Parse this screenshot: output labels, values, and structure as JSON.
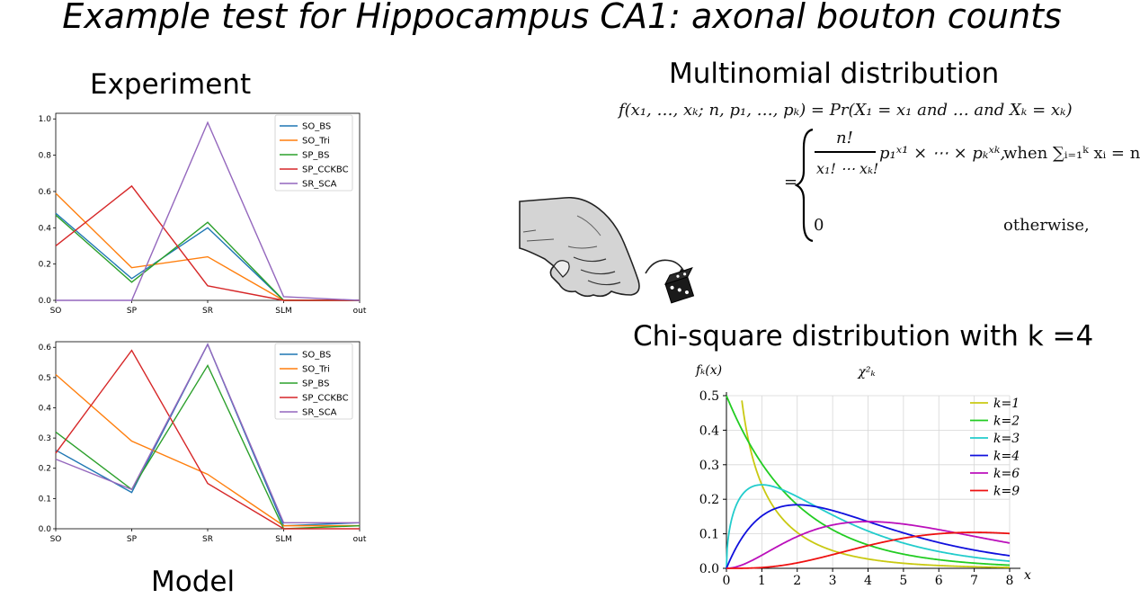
{
  "page": {
    "title": "Example test for Hippocampus CA1: axonal bouton counts",
    "experiment_label": "Experiment",
    "model_label": "Model",
    "multinomial_label": "Multinomial distribution",
    "chisq_label": "Chi-square distribution with k =4"
  },
  "formula": {
    "line1": "f(x₁, …, xₖ; n, p₁, …, pₖ) = Pr(X₁ = x₁ and … and Xₖ = xₖ)",
    "case1_frac_num": "n!",
    "case1_frac_den": "x₁! ⋯ xₖ!",
    "case1_rest": "p₁ˣ¹ × ⋯ × pₖˣᵏ,",
    "case1_cond": "when ∑ᵢ₌₁ᵏ xᵢ = n",
    "case2_value": "0",
    "case2_cond": "otherwise,"
  },
  "chart_data": [
    {
      "type": "line",
      "name": "experiment",
      "categories": [
        "SO",
        "SP",
        "SR",
        "SLM",
        "out"
      ],
      "ylim": [
        0,
        1.0
      ],
      "yticks": [
        "0.0",
        "0.2",
        "0.4",
        "0.6",
        "0.8",
        "1.0"
      ],
      "series": [
        {
          "name": "SO_BS",
          "color": "#1f77b4",
          "values": [
            0.48,
            0.12,
            0.4,
            0.0,
            0.0
          ]
        },
        {
          "name": "SO_Tri",
          "color": "#ff7f0e",
          "values": [
            0.59,
            0.18,
            0.24,
            0.0,
            0.0
          ]
        },
        {
          "name": "SP_BS",
          "color": "#2ca02c",
          "values": [
            0.47,
            0.1,
            0.43,
            0.0,
            0.0
          ]
        },
        {
          "name": "SP_CCKBC",
          "color": "#d62728",
          "values": [
            0.3,
            0.63,
            0.08,
            0.0,
            0.0
          ]
        },
        {
          "name": "SR_SCA",
          "color": "#9467bd",
          "values": [
            0.0,
            0.0,
            0.98,
            0.02,
            0.0
          ]
        }
      ]
    },
    {
      "type": "line",
      "name": "model",
      "categories": [
        "SO",
        "SP",
        "SR",
        "SLM",
        "out"
      ],
      "ylim": [
        0,
        0.6
      ],
      "yticks": [
        "0.0",
        "0.1",
        "0.2",
        "0.3",
        "0.4",
        "0.5",
        "0.6"
      ],
      "series": [
        {
          "name": "SO_BS",
          "color": "#1f77b4",
          "values": [
            0.26,
            0.12,
            0.61,
            0.01,
            0.02
          ]
        },
        {
          "name": "SO_Tri",
          "color": "#ff7f0e",
          "values": [
            0.51,
            0.29,
            0.18,
            0.01,
            0.01
          ]
        },
        {
          "name": "SP_BS",
          "color": "#2ca02c",
          "values": [
            0.32,
            0.13,
            0.54,
            0.0,
            0.01
          ]
        },
        {
          "name": "SP_CCKBC",
          "color": "#d62728",
          "values": [
            0.25,
            0.59,
            0.15,
            0.0,
            0.0
          ]
        },
        {
          "name": "SR_SCA",
          "color": "#9467bd",
          "values": [
            0.23,
            0.13,
            0.61,
            0.02,
            0.02
          ]
        }
      ]
    },
    {
      "type": "line",
      "name": "chi-square",
      "title": "χ²ₖ",
      "ylabel": "fₖ(x)",
      "xlabel": "x",
      "xlim": [
        0,
        8
      ],
      "ylim": [
        0,
        0.5
      ],
      "xticks": [
        "0",
        "1",
        "2",
        "3",
        "4",
        "5",
        "6",
        "7",
        "8"
      ],
      "yticks": [
        "0.0",
        "0.1",
        "0.2",
        "0.3",
        "0.4",
        "0.5"
      ],
      "grid": true,
      "legend": "top-right",
      "series": [
        {
          "name": "k=1",
          "k": 1,
          "color": "#c9c912"
        },
        {
          "name": "k=2",
          "k": 2,
          "color": "#22cc22"
        },
        {
          "name": "k=3",
          "k": 3,
          "color": "#22cccc"
        },
        {
          "name": "k=4",
          "k": 4,
          "color": "#1010dd"
        },
        {
          "name": "k=6",
          "k": 6,
          "color": "#bb10bb"
        },
        {
          "name": "k=9",
          "k": 9,
          "color": "#ee1111"
        }
      ]
    }
  ]
}
